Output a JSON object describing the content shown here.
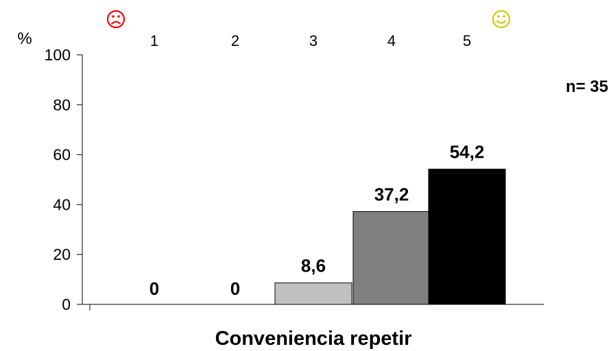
{
  "chart_data": {
    "type": "bar",
    "categories": [
      "1",
      "2",
      "3",
      "4",
      "5"
    ],
    "values": [
      0,
      0,
      8.6,
      37.2,
      54.2
    ],
    "data_labels": [
      "0",
      "0",
      "8,6",
      "37,2",
      "54,2"
    ],
    "bar_colors": [
      "#d9d9d9",
      "#c0c0c0",
      "#c0c0c0",
      "#808080",
      "#000000"
    ],
    "xlabel": "Conveniencia repetir",
    "ylabel": "%",
    "ylim": [
      0,
      100
    ],
    "yticks": [
      "0",
      "20",
      "40",
      "60",
      "80",
      "100"
    ],
    "ytick_values": [
      0,
      20,
      40,
      60,
      80,
      100
    ],
    "grid": false,
    "sample_note": "n= 35",
    "left_face_icon": "sad-face-icon",
    "left_face_color": "#ff0000",
    "right_face_icon": "happy-face-icon",
    "right_face_color": "#cccc00"
  }
}
